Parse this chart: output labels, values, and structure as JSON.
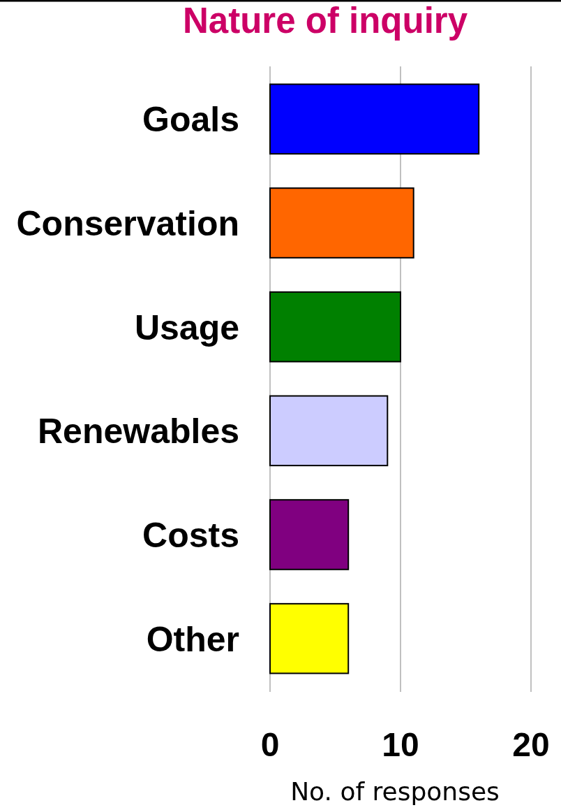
{
  "chart_data": {
    "type": "bar",
    "orientation": "horizontal",
    "title": "Nature of inquiry",
    "xlabel": "No. of responses",
    "categories": [
      "Goals",
      "Conservation",
      "Usage",
      "Renewables",
      "Costs",
      "Other"
    ],
    "values": [
      16,
      11,
      10,
      9,
      6,
      6
    ],
    "colors": [
      "#0000ff",
      "#ff6600",
      "#008000",
      "#ccccff",
      "#800080",
      "#ffff00"
    ],
    "xlim": [
      0,
      20
    ],
    "xticks": [
      0,
      10,
      20
    ],
    "grid": "x"
  }
}
